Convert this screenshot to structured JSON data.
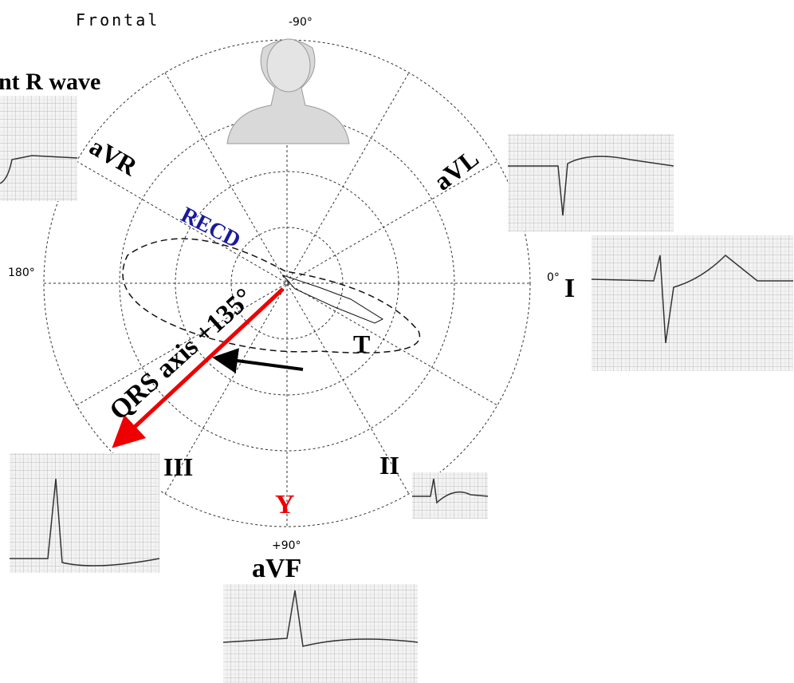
{
  "header": {
    "title": "Frontal",
    "top_angle": "-90°"
  },
  "labels": {
    "r_wave": "nt R wave",
    "avr": "aVR",
    "avl": "aVL",
    "recd": "RECD",
    "left_angle": "180°",
    "right_angle": "0°",
    "lead_i": "I",
    "qrs_axis": "QRS axis +135°",
    "t_loop": "T",
    "lead_iii": "III",
    "lead_ii": "II",
    "y": "Y",
    "bottom_angle": "+90°",
    "avf": "aVF"
  }
}
